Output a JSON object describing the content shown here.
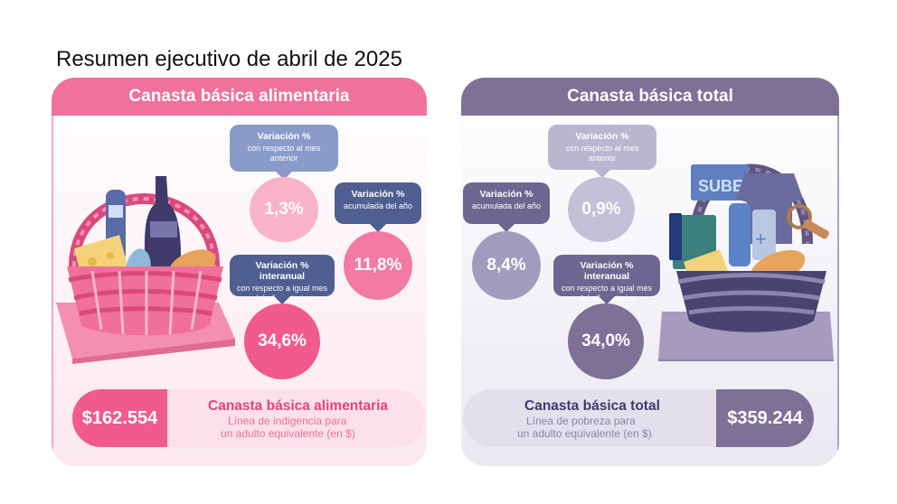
{
  "page": {
    "title": "Resumen ejecutivo de abril de 2025"
  },
  "cba": {
    "header": "Canasta básica alimentaria",
    "monthly": {
      "title": "Variación %",
      "subtitle": "con respecto al mes anterior",
      "value": "1,3%"
    },
    "accumulated": {
      "title": "Variación %",
      "subtitle": "acumulada del año",
      "value": "11,8%"
    },
    "interannual": {
      "title": "Variación % interanual",
      "subtitle": "con respecto a igual mes del año anterior",
      "value": "34,6%"
    },
    "amount": "$162.554",
    "footer_title": "Canasta básica alimentaria",
    "footer_line1": "Línea de indigencia para",
    "footer_line2": "un adulto equivalente (en $)",
    "colors": {
      "primary": "#f0719a",
      "dark": "#f05a8c",
      "light": "#f7a9c4",
      "bubble": "#8fa0c9"
    }
  },
  "cbt": {
    "header": "Canasta básica total",
    "monthly": {
      "title": "Variación %",
      "subtitle": "con respecto al mes anterior",
      "value": "0,9%"
    },
    "accumulated": {
      "title": "Variación %",
      "subtitle": "acumulada del año",
      "value": "8,4%"
    },
    "interannual": {
      "title": "Variación % interanual",
      "subtitle": "con respecto a igual mes del año anterior",
      "value": "34,0%"
    },
    "amount": "$359.244",
    "footer_title": "Canasta básica total",
    "footer_line1": "Línea de pobreza para",
    "footer_line2": "un adulto equivalente (en $)",
    "card_label": "SUBE",
    "colors": {
      "primary": "#7d7198",
      "dark": "#6f6591",
      "light": "#c5bfd7"
    }
  }
}
